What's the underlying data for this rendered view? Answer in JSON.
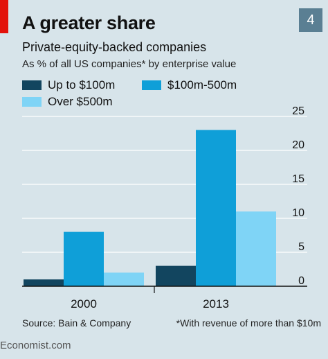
{
  "header": {
    "number": "4",
    "title": "A greater share",
    "subtitle": "Private-equity-backed companies",
    "subtitle2": "As % of all US companies* by enterprise value"
  },
  "footer": {
    "source": "Source: Bain & Company",
    "footnote": "*With revenue of more than $10m",
    "brand": "Economist.com"
  },
  "colors": {
    "series1": "#12455f",
    "series2": "#0f9fd8",
    "series3": "#7fd4f6",
    "grid": "#ffffff",
    "red": "#e3120b"
  },
  "chart_data": {
    "type": "bar",
    "title": "A greater share",
    "subtitle": "Private-equity-backed companies",
    "ylabel": "As % of all US companies* by enterprise value",
    "categories": [
      "2000",
      "2013"
    ],
    "series": [
      {
        "name": "Up to $100m",
        "values": [
          1,
          3
        ]
      },
      {
        "name": "$100m-500m",
        "values": [
          8,
          23
        ]
      },
      {
        "name": "Over $500m",
        "values": [
          2,
          11
        ]
      }
    ],
    "ylim": [
      0,
      25
    ],
    "yticks": [
      0,
      5,
      10,
      15,
      20,
      25
    ],
    "grid": true,
    "axis_side": "right",
    "legend_position": "top-left"
  }
}
